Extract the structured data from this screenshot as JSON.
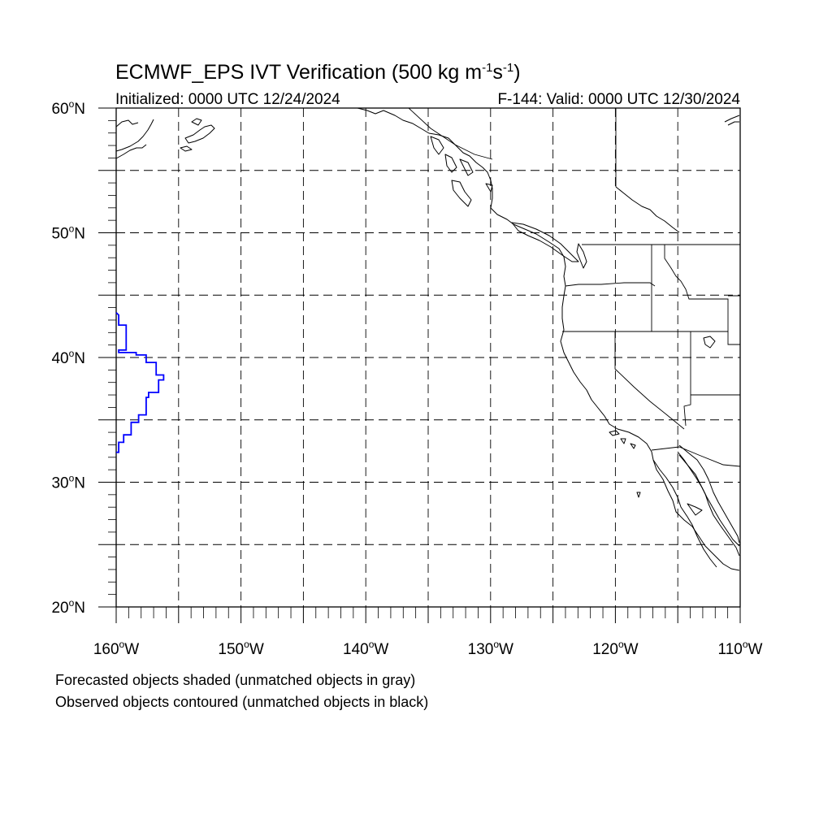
{
  "title": {
    "main": "ECMWF_EPS IVT Verification (500 kg m",
    "sup1": "-1",
    "mid": "s",
    "sup2": "-1",
    "end": ")"
  },
  "init_label": "Initialized: 0000 UTC 12/24/2024",
  "valid_label": "F-144: Valid: 0000 UTC 12/30/2024",
  "map": {
    "lon_range": [
      -160,
      -110
    ],
    "lat_range": [
      20,
      60
    ],
    "lat_ticks": [
      {
        "value": 60,
        "num": "60",
        "suffix": "N"
      },
      {
        "value": 50,
        "num": "50",
        "suffix": "N"
      },
      {
        "value": 40,
        "num": "40",
        "suffix": "N"
      },
      {
        "value": 30,
        "num": "30",
        "suffix": "N"
      },
      {
        "value": 20,
        "num": "20",
        "suffix": "N"
      }
    ],
    "lon_ticks": [
      {
        "value": -160,
        "num": "160",
        "suffix": "W"
      },
      {
        "value": -150,
        "num": "150",
        "suffix": "W"
      },
      {
        "value": -140,
        "num": "140",
        "suffix": "W"
      },
      {
        "value": -130,
        "num": "130",
        "suffix": "W"
      },
      {
        "value": -120,
        "num": "120",
        "suffix": "W"
      },
      {
        "value": -110,
        "num": "110",
        "suffix": "W"
      }
    ],
    "grid_lons": [
      -155,
      -150,
      -145,
      -140,
      -135,
      -130,
      -125,
      -120,
      -115
    ],
    "grid_lats": [
      55,
      50,
      45,
      40,
      35,
      30,
      25
    ],
    "observed_contour_color": "#0000ff",
    "observed_object": [
      [
        -160.0,
        43.6
      ],
      [
        -159.8,
        43.4
      ],
      [
        -159.8,
        42.6
      ],
      [
        -159.2,
        42.6
      ],
      [
        -159.2,
        40.6
      ],
      [
        -159.8,
        40.6
      ],
      [
        -159.8,
        40.4
      ],
      [
        -158.4,
        40.4
      ],
      [
        -158.4,
        40.2
      ],
      [
        -157.6,
        40.2
      ],
      [
        -157.6,
        39.6
      ],
      [
        -156.8,
        39.6
      ],
      [
        -156.8,
        38.6
      ],
      [
        -156.2,
        38.6
      ],
      [
        -156.2,
        38.2
      ],
      [
        -156.6,
        38.2
      ],
      [
        -156.6,
        37.2
      ],
      [
        -157.4,
        37.2
      ],
      [
        -157.4,
        36.8
      ],
      [
        -157.6,
        36.8
      ],
      [
        -157.6,
        35.4
      ],
      [
        -158.2,
        35.4
      ],
      [
        -158.2,
        34.8
      ],
      [
        -158.8,
        34.8
      ],
      [
        -158.8,
        33.8
      ],
      [
        -159.4,
        33.8
      ],
      [
        -159.4,
        33.2
      ],
      [
        -159.8,
        33.2
      ],
      [
        -159.8,
        32.4
      ],
      [
        -160.0,
        32.4
      ]
    ]
  },
  "notes": [
    "Forecasted objects shaded (unmatched objects in gray)",
    "Observed objects contoured (unmatched objects in black)"
  ]
}
